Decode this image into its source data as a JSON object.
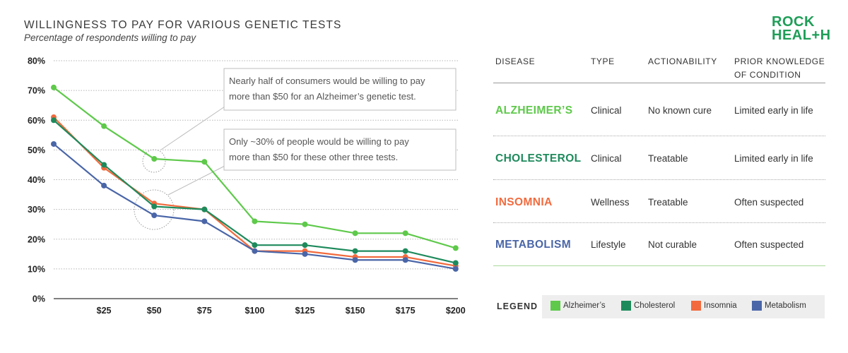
{
  "title": "WILLINGNESS TO PAY FOR VARIOUS GENETIC TESTS",
  "subtitle": "Percentage of respondents willing to pay",
  "logo": {
    "line1": "ROCK",
    "line2_a": "HEAL",
    "line2_plus": "+",
    "line2_b": "H"
  },
  "chart_data": {
    "type": "line",
    "x_categories": [
      "",
      "$25",
      "$50",
      "$75",
      "$100",
      "$125",
      "$150",
      "$175",
      "$200"
    ],
    "y_ticks": [
      "0%",
      "10%",
      "20%",
      "30%",
      "40%",
      "50%",
      "60%",
      "70%",
      "80%"
    ],
    "ylim": [
      0,
      80
    ],
    "grid": true,
    "series": [
      {
        "name": "Alzheimer’s",
        "color": "#5ec94a",
        "values": [
          71,
          58,
          47,
          46,
          26,
          25,
          22,
          22,
          17
        ]
      },
      {
        "name": "Insomnia",
        "color": "#f26a3d",
        "values": [
          61,
          44,
          32,
          30,
          16,
          16,
          14,
          14,
          11
        ]
      },
      {
        "name": "Cholesterol",
        "color": "#1e8a5c",
        "values": [
          60,
          45,
          31,
          30,
          18,
          18,
          16,
          16,
          12
        ]
      },
      {
        "name": "Metabolism",
        "color": "#4a66a8",
        "values": [
          52,
          38,
          28,
          26,
          16,
          15,
          13,
          13,
          10
        ]
      }
    ],
    "annotations": [
      {
        "lines": [
          "Nearly half of consumers would be willing to pay",
          "more than $50 for an Alzheimer’s genetic test."
        ]
      },
      {
        "lines": [
          "Only ~30% of people would be willing to pay",
          "more than $50 for these other three tests."
        ]
      }
    ]
  },
  "table": {
    "headers": [
      "DISEASE",
      "TYPE",
      "ACTIONABILITY",
      "PRIOR KNOWLEDGE",
      "OF CONDITION"
    ],
    "rows": [
      {
        "disease": "ALZHEIMER’S",
        "color": "#5ec94a",
        "type": "Clinical",
        "action": "No known cure",
        "prior": "Limited early in life"
      },
      {
        "disease": "CHOLESTEROL",
        "color": "#1e8a5c",
        "type": "Clinical",
        "action": "Treatable",
        "prior": "Limited early in life"
      },
      {
        "disease": "INSOMNIA",
        "color": "#f26a3d",
        "type": "Wellness",
        "action": "Treatable",
        "prior": "Often suspected"
      },
      {
        "disease": "METABOLISM",
        "color": "#4a66a8",
        "type": "Lifestyle",
        "action": "Not curable",
        "prior": "Often suspected"
      }
    ]
  },
  "legend": {
    "title": "LEGEND",
    "items": [
      {
        "label": "Alzheimer’s",
        "color": "#5ec94a"
      },
      {
        "label": "Cholesterol",
        "color": "#1e8a5c"
      },
      {
        "label": "Insomnia",
        "color": "#f26a3d"
      },
      {
        "label": "Metabolism",
        "color": "#4a66a8"
      }
    ]
  }
}
